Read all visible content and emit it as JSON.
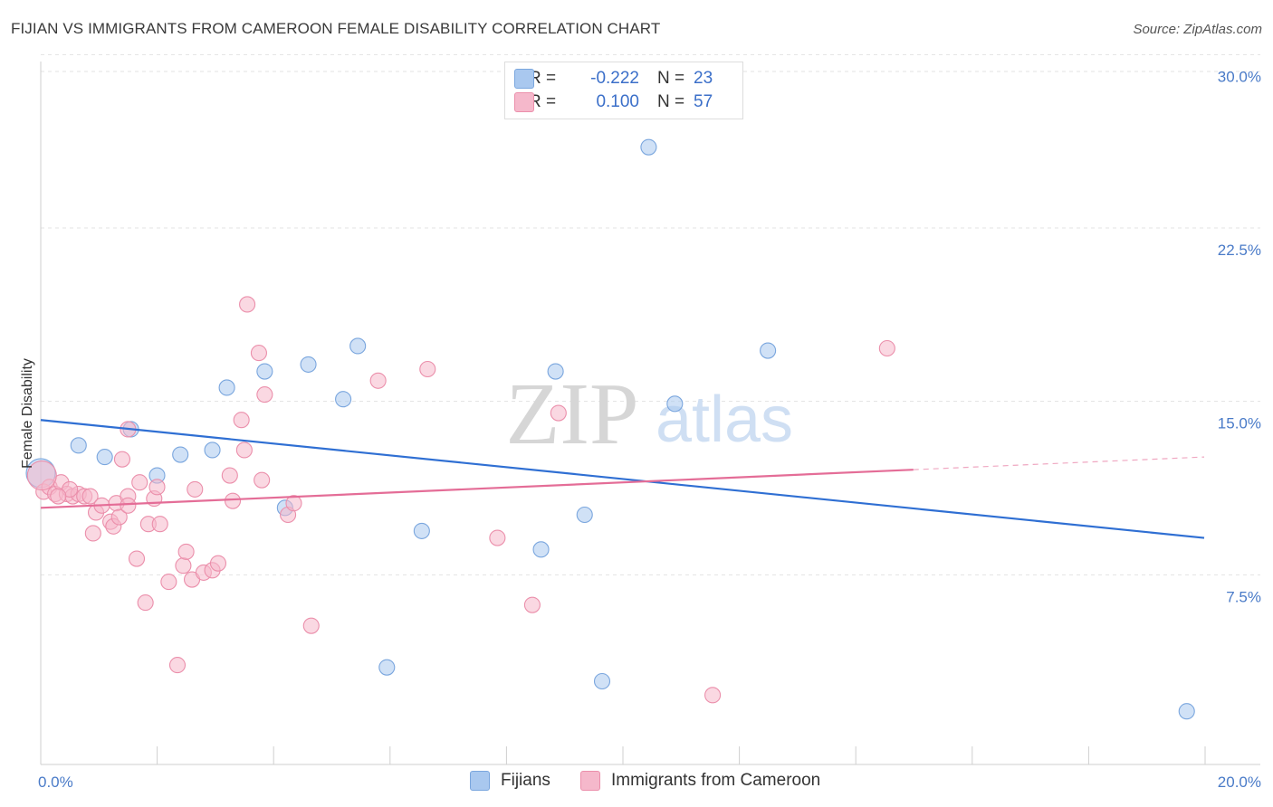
{
  "title": "FIJIAN VS IMMIGRANTS FROM CAMEROON FEMALE DISABILITY CORRELATION CHART",
  "source": "Source: ZipAtlas.com",
  "watermark": {
    "zip": "ZIP",
    "atlas": "atlas"
  },
  "colors": {
    "blue_fill": "#a9c8ef",
    "blue_stroke": "#7aa6de",
    "blue_line": "#2f6fd3",
    "pink_fill": "#f5b8cb",
    "pink_stroke": "#eb8fab",
    "pink_line": "#e46d97",
    "grid": "#e3e3e3",
    "tick_text": "#4a7bc8"
  },
  "legend_top": [
    {
      "r_label": "R =",
      "r_value": "-0.222",
      "n_label": "N =",
      "n_value": "23"
    },
    {
      "r_label": "R =",
      "r_value": "0.100",
      "n_label": "N =",
      "n_value": "57"
    }
  ],
  "chart_data": {
    "type": "scatter",
    "ylabel": "Female Disability",
    "xlim": [
      0,
      20
    ],
    "ylim": [
      0,
      31.5
    ],
    "x_tick_labels": [
      {
        "value": 0,
        "label": "0.0%"
      },
      {
        "value": 20,
        "label": "20.0%"
      }
    ],
    "y_tick_labels": [
      {
        "value": 7.5,
        "label": "7.5%"
      },
      {
        "value": 15.0,
        "label": "15.0%"
      },
      {
        "value": 22.5,
        "label": "22.5%"
      },
      {
        "value": 30.0,
        "label": "30.0%"
      }
    ],
    "series": [
      {
        "name": "Fijians",
        "color": "#a9c8ef",
        "points": [
          [
            0.0,
            12.6
          ],
          [
            0.65,
            13.8
          ],
          [
            1.1,
            13.3
          ],
          [
            1.55,
            14.5
          ],
          [
            2.0,
            12.5
          ],
          [
            2.4,
            13.4
          ],
          [
            2.95,
            13.6
          ],
          [
            3.2,
            16.3
          ],
          [
            3.85,
            17.0
          ],
          [
            4.2,
            11.1
          ],
          [
            4.6,
            17.3
          ],
          [
            5.2,
            15.8
          ],
          [
            5.45,
            18.1
          ],
          [
            5.95,
            4.2
          ],
          [
            6.55,
            10.1
          ],
          [
            8.6,
            9.3
          ],
          [
            8.85,
            17.0
          ],
          [
            9.35,
            10.8
          ],
          [
            9.65,
            3.6
          ],
          [
            10.45,
            26.7
          ],
          [
            10.9,
            15.6
          ],
          [
            12.5,
            17.9
          ],
          [
            19.7,
            2.3
          ]
        ],
        "trend": {
          "x": [
            0,
            20
          ],
          "y": [
            14.9,
            9.8
          ],
          "dashed_from": null
        }
      },
      {
        "name": "Immigrants from Cameroon",
        "color": "#f5b8cb",
        "points": [
          [
            0.05,
            11.8
          ],
          [
            0.15,
            12.0
          ],
          [
            0.25,
            11.7
          ],
          [
            0.35,
            12.2
          ],
          [
            0.45,
            11.7
          ],
          [
            0.55,
            11.6
          ],
          [
            0.65,
            11.7
          ],
          [
            0.75,
            11.6
          ],
          [
            0.85,
            11.6
          ],
          [
            0.95,
            10.9
          ],
          [
            0.9,
            10.0
          ],
          [
            1.05,
            11.2
          ],
          [
            1.2,
            10.5
          ],
          [
            1.25,
            10.3
          ],
          [
            1.3,
            11.3
          ],
          [
            1.35,
            10.7
          ],
          [
            1.4,
            13.2
          ],
          [
            1.5,
            11.6
          ],
          [
            1.5,
            11.2
          ],
          [
            1.65,
            8.9
          ],
          [
            1.7,
            12.2
          ],
          [
            1.8,
            7.0
          ],
          [
            1.85,
            10.4
          ],
          [
            1.95,
            11.5
          ],
          [
            2.0,
            12.0
          ],
          [
            2.05,
            10.4
          ],
          [
            2.2,
            7.9
          ],
          [
            2.35,
            4.3
          ],
          [
            2.45,
            8.6
          ],
          [
            2.5,
            9.2
          ],
          [
            2.6,
            8.0
          ],
          [
            2.65,
            11.9
          ],
          [
            2.8,
            8.3
          ],
          [
            2.95,
            8.4
          ],
          [
            3.05,
            8.7
          ],
          [
            3.25,
            12.5
          ],
          [
            3.3,
            11.4
          ],
          [
            3.45,
            14.9
          ],
          [
            3.5,
            13.6
          ],
          [
            3.55,
            19.9
          ],
          [
            3.75,
            17.8
          ],
          [
            3.8,
            12.3
          ],
          [
            3.85,
            16.0
          ],
          [
            4.25,
            10.8
          ],
          [
            4.35,
            11.3
          ],
          [
            4.65,
            6.0
          ],
          [
            5.8,
            16.6
          ],
          [
            6.65,
            17.1
          ],
          [
            7.85,
            9.8
          ],
          [
            8.45,
            6.9
          ],
          [
            8.9,
            15.2
          ],
          [
            11.55,
            3.0
          ],
          [
            14.55,
            18.0
          ],
          [
            0.02,
            12.5
          ],
          [
            1.5,
            14.5
          ],
          [
            0.5,
            11.9
          ],
          [
            0.3,
            11.6
          ]
        ],
        "trend": {
          "x": [
            0,
            20
          ],
          "y": [
            11.1,
            13.3
          ],
          "dashed_from": 15.0
        }
      }
    ],
    "grid": true,
    "legend_position": "bottom"
  }
}
